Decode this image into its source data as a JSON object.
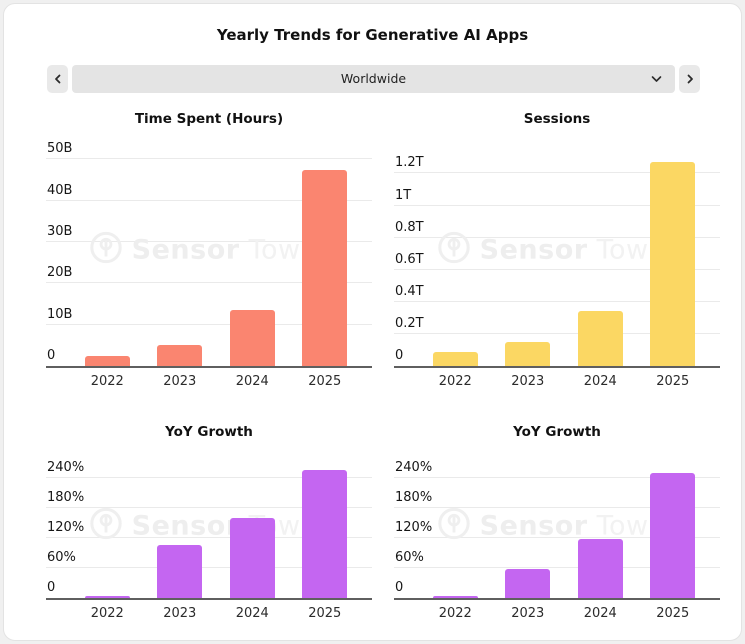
{
  "page": {
    "title": "Yearly Trends for Generative AI Apps"
  },
  "controls": {
    "prev_icon": "chevron-left-icon",
    "next_icon": "chevron-right-icon",
    "selector_value": "Worldwide",
    "selector_icon": "chevron-down-icon"
  },
  "watermark": {
    "logo_icon": "sensor-tower-logo-icon",
    "brand_bold": "Sensor",
    "brand_light": "Tower"
  },
  "chart_data": [
    {
      "id": "time-spent",
      "type": "bar",
      "title": "Time Spent (Hours)",
      "categories": [
        "2022",
        "2023",
        "2024",
        "2025"
      ],
      "values": [
        2.4,
        5,
        13.5,
        47.5
      ],
      "value_unit": "billion hours",
      "bar_color": "#FA8570",
      "ylim": [
        0,
        52
      ],
      "grid": true,
      "legend": false,
      "yticks": [
        {
          "value": 0,
          "label": "0"
        },
        {
          "value": 10,
          "label": "10B"
        },
        {
          "value": 20,
          "label": "20B"
        },
        {
          "value": 30,
          "label": "30B"
        },
        {
          "value": 40,
          "label": "40B"
        },
        {
          "value": 50,
          "label": "50B"
        }
      ]
    },
    {
      "id": "sessions",
      "type": "bar",
      "title": "Sessions",
      "categories": [
        "2022",
        "2023",
        "2024",
        "2025"
      ],
      "values": [
        0.09,
        0.15,
        0.34,
        1.27
      ],
      "value_unit": "trillion sessions",
      "bar_color": "#FBD763",
      "ylim": [
        0,
        1.34
      ],
      "grid": true,
      "legend": false,
      "yticks": [
        {
          "value": 0,
          "label": "0"
        },
        {
          "value": 0.2,
          "label": "0.2T"
        },
        {
          "value": 0.4,
          "label": "0.4T"
        },
        {
          "value": 0.6,
          "label": "0.6T"
        },
        {
          "value": 0.8,
          "label": "0.8T"
        },
        {
          "value": 1,
          "label": "1T"
        },
        {
          "value": 1.2,
          "label": "1.2T"
        }
      ]
    },
    {
      "id": "yoy-growth-time-spent",
      "type": "bar",
      "title": "YoY Growth",
      "categories": [
        "2022",
        "2023",
        "2024",
        "2025"
      ],
      "values": [
        3,
        105,
        160,
        255
      ],
      "value_unit": "percent",
      "bar_color": "#C466F1",
      "ylim": [
        0,
        266
      ],
      "grid": true,
      "legend": false,
      "yticks": [
        {
          "value": 0,
          "label": "0"
        },
        {
          "value": 60,
          "label": "60%"
        },
        {
          "value": 120,
          "label": "120%"
        },
        {
          "value": 180,
          "label": "180%"
        },
        {
          "value": 240,
          "label": "240%"
        }
      ]
    },
    {
      "id": "yoy-growth-sessions",
      "type": "bar",
      "title": "YoY Growth",
      "categories": [
        "2022",
        "2023",
        "2024",
        "2025"
      ],
      "values": [
        3,
        58,
        118,
        250
      ],
      "value_unit": "percent",
      "bar_color": "#C466F1",
      "ylim": [
        0,
        266
      ],
      "grid": true,
      "legend": false,
      "yticks": [
        {
          "value": 0,
          "label": "0"
        },
        {
          "value": 60,
          "label": "60%"
        },
        {
          "value": 120,
          "label": "120%"
        },
        {
          "value": 180,
          "label": "180%"
        },
        {
          "value": 240,
          "label": "240%"
        }
      ]
    }
  ]
}
